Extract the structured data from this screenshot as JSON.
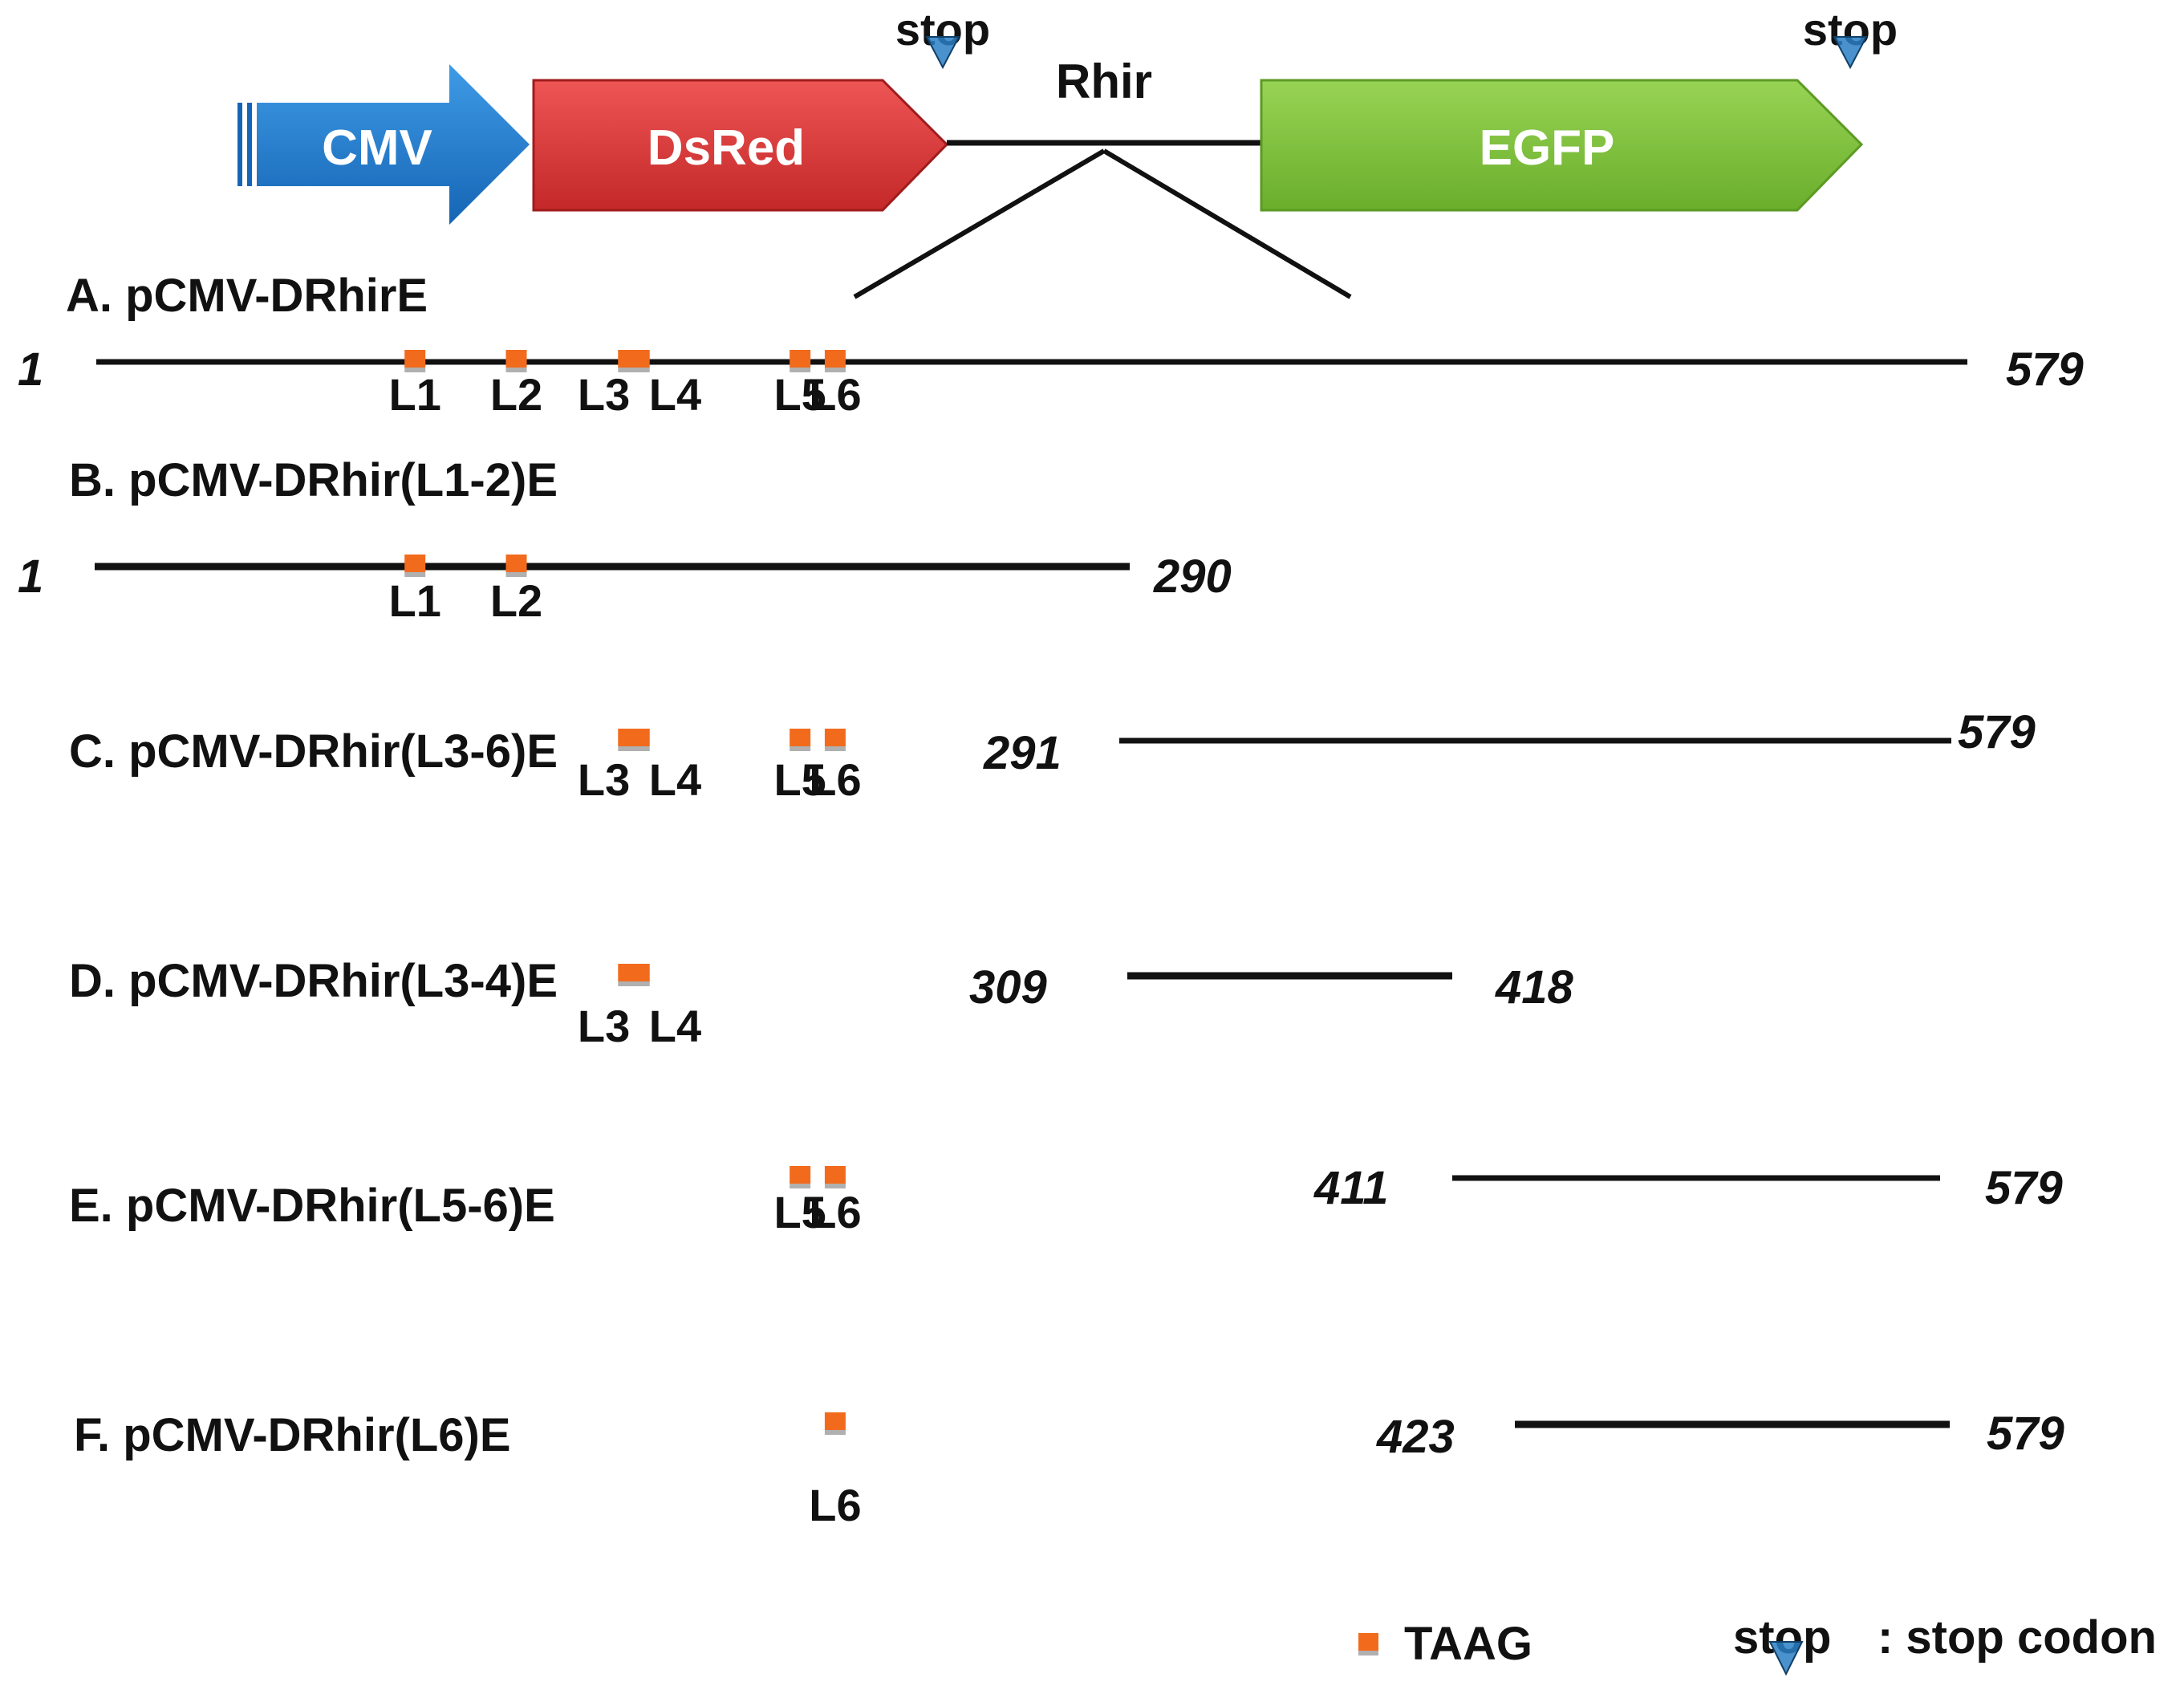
{
  "cassette": {
    "promoter": "CMV",
    "reporter1": "DsRed",
    "insert": "Rhir",
    "reporter2": "EGFP",
    "stop1": "stop",
    "stop2": "stop",
    "colors": {
      "promoter": "#1b7fd0",
      "reporter1": "#d93a3a",
      "reporter2": "#7fc23c",
      "stop_marker": "#2a7fc4"
    }
  },
  "constructs": [
    {
      "title": "A. pCMV-DRhirE",
      "start": "1",
      "end": "579",
      "sites": [
        {
          "label": "L1",
          "pos": 300
        },
        {
          "label": "L2",
          "pos": 375
        },
        {
          "label": "L3",
          "pos": 458
        },
        {
          "label": "L4",
          "pos": 466
        },
        {
          "label": "L5",
          "pos": 585
        },
        {
          "label": "L6",
          "pos": 611
        }
      ]
    },
    {
      "title": "B. pCMV-DRhir(L1-2)E",
      "start": "1",
      "end": "290",
      "sites": [
        {
          "label": "L1",
          "pos": 300
        },
        {
          "label": "L2",
          "pos": 375
        }
      ]
    },
    {
      "title": "C. pCMV-DRhir(L3-6)E",
      "start": "291",
      "end": "579",
      "sites": [
        {
          "label": "L3",
          "pos": 458
        },
        {
          "label": "L4",
          "pos": 466
        },
        {
          "label": "L5",
          "pos": 585
        },
        {
          "label": "L6",
          "pos": 611
        }
      ]
    },
    {
      "title": "D. pCMV-DRhir(L3-4)E",
      "start": "309",
      "end": "418",
      "sites": [
        {
          "label": "L3",
          "pos": 458
        },
        {
          "label": "L4",
          "pos": 466
        }
      ]
    },
    {
      "title": "E. pCMV-DRhir(L5-6)E",
      "start": "411",
      "end": "579",
      "sites": [
        {
          "label": "L5",
          "pos": 585
        },
        {
          "label": "L6",
          "pos": 611
        }
      ]
    },
    {
      "title": "F. pCMV-DRhir(L6)E",
      "start": "423",
      "end": "579",
      "sites": [
        {
          "label": "L6",
          "pos": 611
        }
      ]
    }
  ],
  "legend": {
    "site_label": "TAAG",
    "site_color": "#f26b1d",
    "stop_word": "stop",
    "stop_desc": ": stop codon"
  }
}
